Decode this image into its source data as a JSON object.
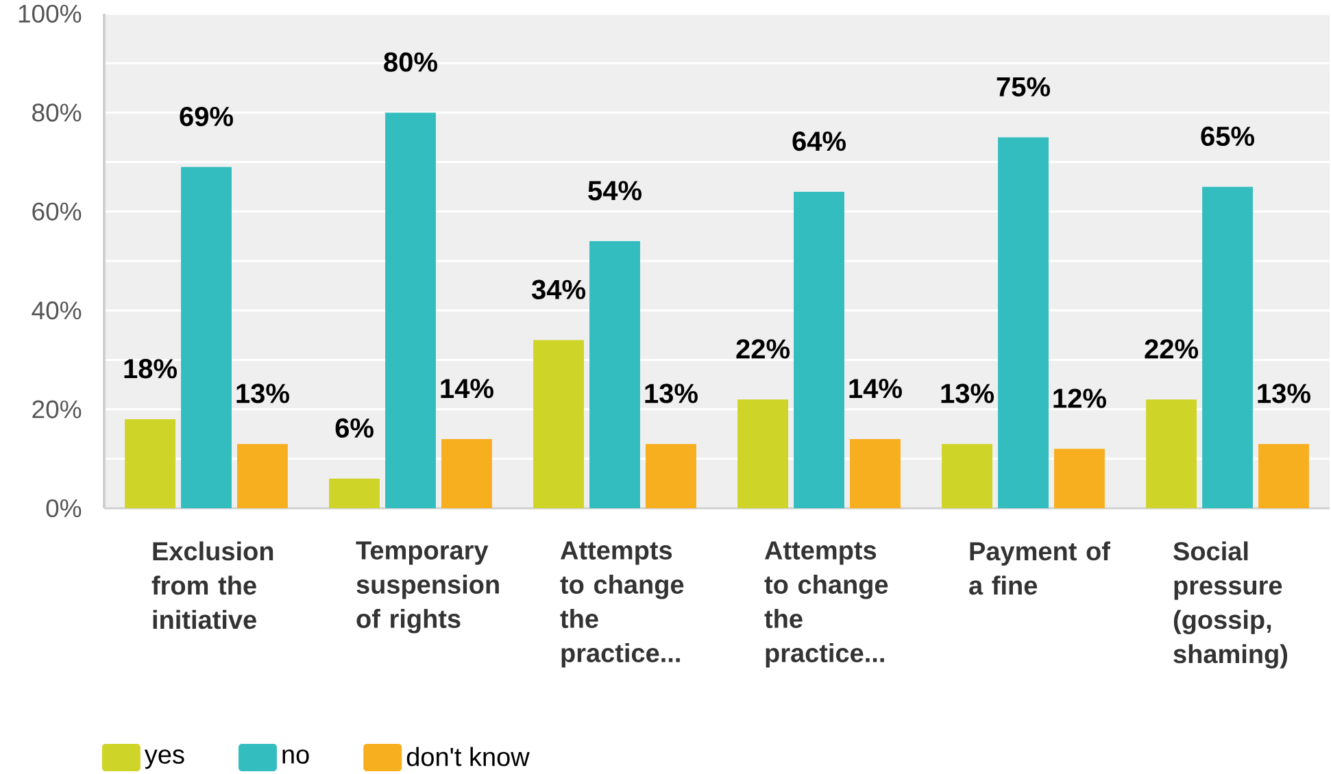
{
  "chart_data": {
    "type": "bar",
    "categories": [
      "Exclusion from the initiative",
      "Temporary suspension of rights",
      "Attempts to change the practice...",
      "Attempts to change the practice...",
      "Payment of a fine",
      "Social pressure (gossip, shaming)"
    ],
    "series": [
      {
        "name": "yes",
        "color": "#cfd428",
        "values": [
          18,
          6,
          34,
          22,
          13,
          22
        ],
        "value_labels": [
          "18%",
          "6%",
          "34%",
          "22%",
          "13%",
          "22%"
        ]
      },
      {
        "name": "no",
        "color": "#33bdbf",
        "values": [
          69,
          80,
          54,
          64,
          75,
          65
        ],
        "value_labels": [
          "69%",
          "80%",
          "54%",
          "64%",
          "75%",
          "65%"
        ]
      },
      {
        "name": "don't know",
        "color": "#f7ae1f",
        "values": [
          13,
          14,
          13,
          14,
          12,
          13
        ],
        "value_labels": [
          "13%",
          "14%",
          "13%",
          "14%",
          "12%",
          "13%"
        ]
      }
    ],
    "ylim": [
      0,
      100
    ],
    "yticks": [
      {
        "value": 0,
        "label": "0%"
      },
      {
        "value": 10,
        "label": null
      },
      {
        "value": 20,
        "label": "20%"
      },
      {
        "value": 30,
        "label": null
      },
      {
        "value": 40,
        "label": "40%"
      },
      {
        "value": 50,
        "label": null
      },
      {
        "value": 60,
        "label": "60%"
      },
      {
        "value": 70,
        "label": null
      },
      {
        "value": 80,
        "label": "80%"
      },
      {
        "value": 90,
        "label": null
      },
      {
        "value": 100,
        "label": "100%"
      }
    ],
    "grid": "y",
    "legend": "bottom left"
  }
}
